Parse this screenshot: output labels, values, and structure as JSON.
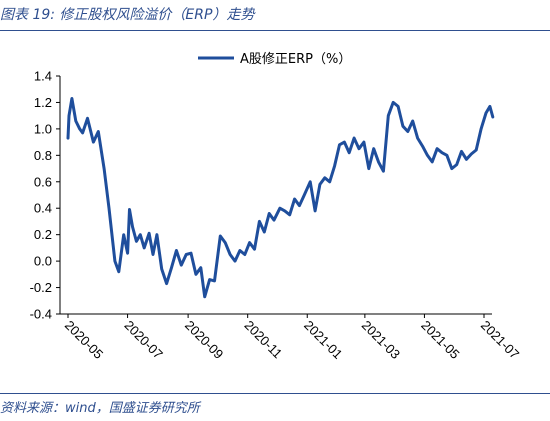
{
  "header": {
    "title": "图表 19:  修正股权风险溢价（ERP）走势"
  },
  "footer": {
    "source": "资料来源：wind，国盛证券研究所"
  },
  "colors": {
    "accent": "#2f4f8f",
    "series": "#1f4e9c"
  },
  "chart_data": {
    "type": "line",
    "title": "",
    "xlabel": "",
    "ylabel": "",
    "ylim": [
      -0.4,
      1.4
    ],
    "yticks": [
      "1.4",
      "1.2",
      "1.0",
      "0.8",
      "0.6",
      "0.4",
      "0.2",
      "0.0",
      "-0.2",
      "-0.4"
    ],
    "xticks": [
      "2020-05",
      "2020-07",
      "2020-09",
      "2020-11",
      "2021-01",
      "2021-03",
      "2021-05",
      "2021-07"
    ],
    "xtick_dates": [
      "2020-05-01",
      "2020-07-01",
      "2020-09-01",
      "2020-11-01",
      "2021-01-01",
      "2021-03-01",
      "2021-05-01",
      "2021-07-01"
    ],
    "legend_position": "top-center",
    "series": [
      {
        "name": "A股修正ERP（%）",
        "x": [
          "2020-05-01",
          "2020-05-02",
          "2020-05-05",
          "2020-05-09",
          "2020-05-13",
          "2020-05-16",
          "2020-05-21",
          "2020-05-27",
          "2020-06-01",
          "2020-06-07",
          "2020-06-12",
          "2020-06-18",
          "2020-06-22",
          "2020-06-27",
          "2020-07-01",
          "2020-07-03",
          "2020-07-06",
          "2020-07-10",
          "2020-07-14",
          "2020-07-18",
          "2020-07-23",
          "2020-07-27",
          "2020-07-31",
          "2020-08-05",
          "2020-08-10",
          "2020-08-15",
          "2020-08-20",
          "2020-08-25",
          "2020-08-30",
          "2020-09-04",
          "2020-09-09",
          "2020-09-14",
          "2020-09-18",
          "2020-09-23",
          "2020-09-28",
          "2020-10-04",
          "2020-10-09",
          "2020-10-14",
          "2020-10-19",
          "2020-10-24",
          "2020-10-29",
          "2020-11-03",
          "2020-11-08",
          "2020-11-13",
          "2020-11-18",
          "2020-11-23",
          "2020-11-28",
          "2020-12-04",
          "2020-12-09",
          "2020-12-14",
          "2020-12-19",
          "2020-12-24",
          "2020-12-29",
          "2021-01-04",
          "2021-01-09",
          "2021-01-14",
          "2021-01-19",
          "2021-01-24",
          "2021-01-29",
          "2021-02-03",
          "2021-02-08",
          "2021-02-13",
          "2021-02-18",
          "2021-02-23",
          "2021-02-28",
          "2021-03-05",
          "2021-03-10",
          "2021-03-15",
          "2021-03-20",
          "2021-03-25",
          "2021-03-30",
          "2021-04-04",
          "2021-04-09",
          "2021-04-14",
          "2021-04-19",
          "2021-04-24",
          "2021-04-29",
          "2021-05-04",
          "2021-05-09",
          "2021-05-14",
          "2021-05-19",
          "2021-05-24",
          "2021-05-29",
          "2021-06-03",
          "2021-06-08",
          "2021-06-13",
          "2021-06-18",
          "2021-06-23",
          "2021-06-28",
          "2021-07-03",
          "2021-07-07",
          "2021-07-10"
        ],
        "values": [
          0.93,
          1.1,
          1.23,
          1.06,
          1.0,
          0.97,
          1.08,
          0.9,
          0.98,
          0.7,
          0.4,
          0.0,
          -0.08,
          0.2,
          0.06,
          0.39,
          0.26,
          0.15,
          0.2,
          0.1,
          0.21,
          0.05,
          0.2,
          -0.06,
          -0.17,
          -0.05,
          0.08,
          -0.03,
          0.05,
          0.06,
          -0.1,
          -0.05,
          -0.27,
          -0.14,
          -0.15,
          0.19,
          0.14,
          0.05,
          0.0,
          0.08,
          0.05,
          0.14,
          0.09,
          0.3,
          0.22,
          0.36,
          0.31,
          0.4,
          0.38,
          0.35,
          0.47,
          0.42,
          0.5,
          0.6,
          0.38,
          0.58,
          0.63,
          0.6,
          0.72,
          0.88,
          0.9,
          0.82,
          0.93,
          0.85,
          0.9,
          0.7,
          0.85,
          0.75,
          0.68,
          1.1,
          1.2,
          1.17,
          1.02,
          0.98,
          1.06,
          0.93,
          0.87,
          0.8,
          0.75,
          0.85,
          0.82,
          0.8,
          0.7,
          0.73,
          0.83,
          0.77,
          0.81,
          0.84,
          1.0,
          1.12,
          1.17,
          1.09
        ]
      }
    ]
  }
}
